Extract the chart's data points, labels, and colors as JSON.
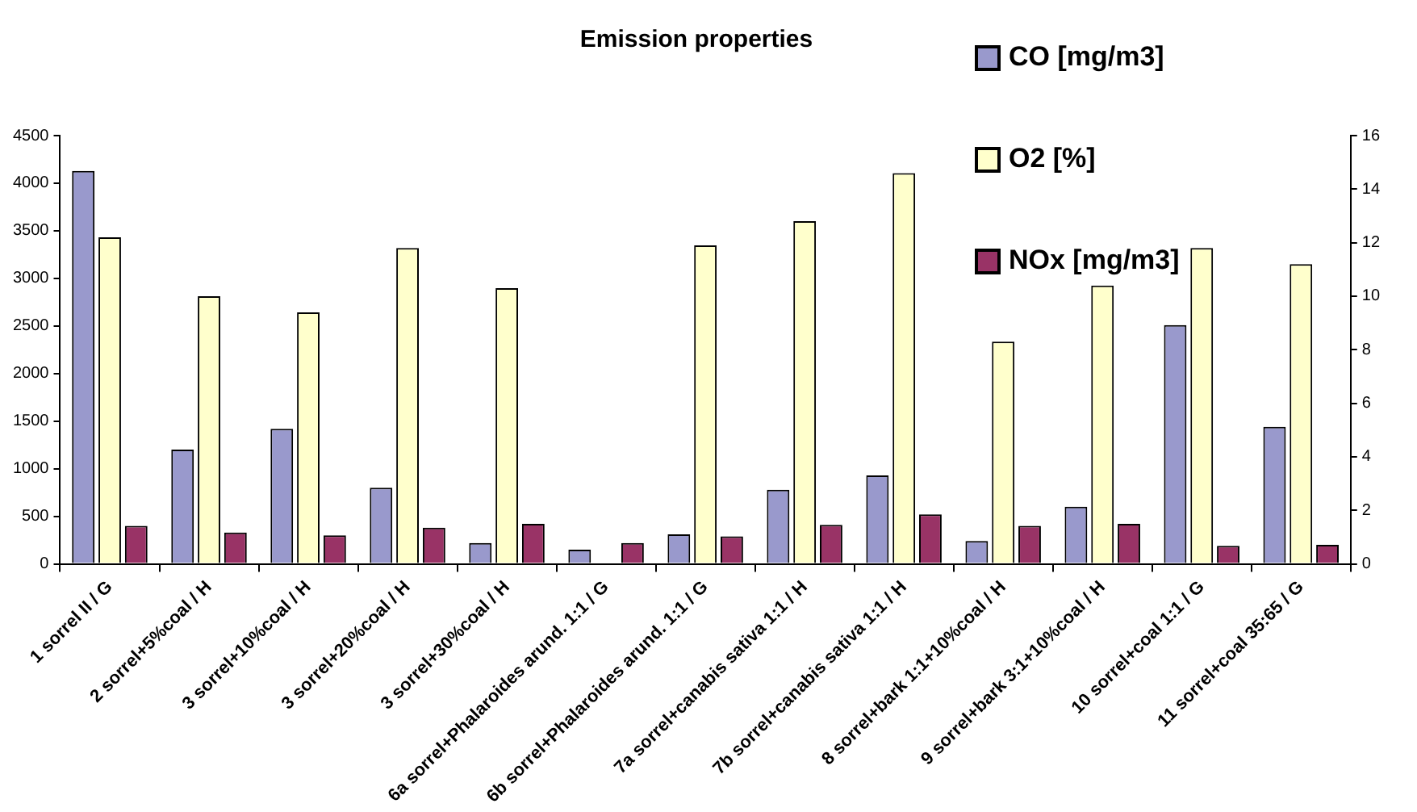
{
  "chart_data": {
    "type": "bar",
    "title": "Emission properties",
    "categories": [
      "1 sorrel II / G",
      "2 sorrel+5%coal / H",
      "3 sorrel+10%coal / H",
      "3 sorrel+20%coal / H",
      "3 sorrel+30%coal / H",
      "6a sorrel+Phalaroides arund. 1:1 / G",
      "6b sorrel+Phalaroides arund. 1:1 / G",
      "7a sorrel+canabis sativa 1:1 / H",
      "7b sorrel+canabis sativa 1:1 / H",
      "8 sorrel+bark 1:1+10%coal / H",
      "9 sorrel+bark 3:1+10%coal / H",
      "10 sorrel+coal 1:1 / G",
      "11 sorrel+coal 35:65 / G"
    ],
    "series": [
      {
        "name": "CO [mg/m3]",
        "color": "#9999cc",
        "values": [
          4130,
          1200,
          1420,
          800,
          220,
          150,
          310,
          780,
          930,
          240,
          600,
          2510,
          1440
        ]
      },
      {
        "name": "O2 [%]",
        "color": "#ffffcc",
        "axis": "y2",
        "values": [
          12.2,
          10.0,
          9.4,
          11.8,
          10.3,
          null,
          11.9,
          12.8,
          14.6,
          8.3,
          10.4,
          11.8,
          11.2
        ]
      },
      {
        "name": "NOx [mg/m3]",
        "color": "#993366",
        "values": [
          400,
          330,
          300,
          380,
          420,
          220,
          290,
          410,
          520,
          400,
          420,
          190,
          200
        ]
      }
    ],
    "ylim": [
      0,
      4500
    ],
    "yticks": [
      0,
      500,
      1000,
      1500,
      2000,
      2500,
      3000,
      3500,
      4000,
      4500
    ],
    "y2lim": [
      0,
      16
    ],
    "y2ticks": [
      0,
      2,
      4,
      6,
      8,
      10,
      12,
      14,
      16
    ],
    "grid": false,
    "legend": "top right"
  }
}
